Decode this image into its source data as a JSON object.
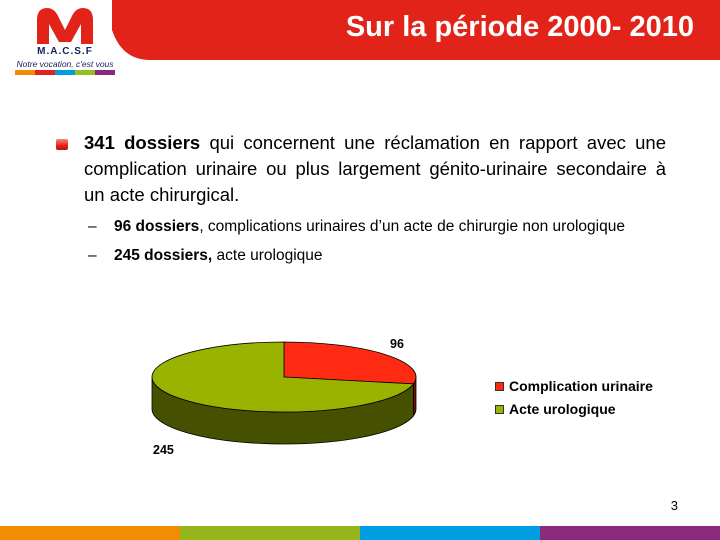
{
  "header": {
    "title": "Sur la période 2000- 2010",
    "color": "#e2231a"
  },
  "logo": {
    "name": "M.A.C.S.F",
    "tagline": "Notre vocation, c'est vous",
    "colors": [
      "#e2231a",
      "#13235b"
    ],
    "strip_colors": [
      "#f28c00",
      "#e2231a",
      "#009ee0",
      "#95c11f",
      "#8a2a7f"
    ]
  },
  "content": {
    "main_bold": "341 dossiers",
    "main_text": " qui concernent une réclamation en rapport avec une complication urinaire ou plus largement génito-urinaire secondaire à un acte chirurgical.",
    "sub_items": [
      {
        "bold": "96 dossiers",
        "text": ", complications urinaires d’un acte de chirurgie non urologique"
      },
      {
        "bold": "245 dossiers,",
        "text": " acte urologique"
      }
    ],
    "dash": "–"
  },
  "chart_data": {
    "type": "pie",
    "style": "3d",
    "labels": [
      "Complication urinaire",
      "Acte urologique"
    ],
    "values": [
      96,
      245
    ],
    "colors": [
      "#ff2a12",
      "#99b300"
    ],
    "legend": "right",
    "data_labels": [
      "96",
      "245"
    ]
  },
  "page_number": "3",
  "footer_colors": [
    "#f28c00",
    "#95b51a",
    "#009fe3",
    "#8c2b7c"
  ]
}
